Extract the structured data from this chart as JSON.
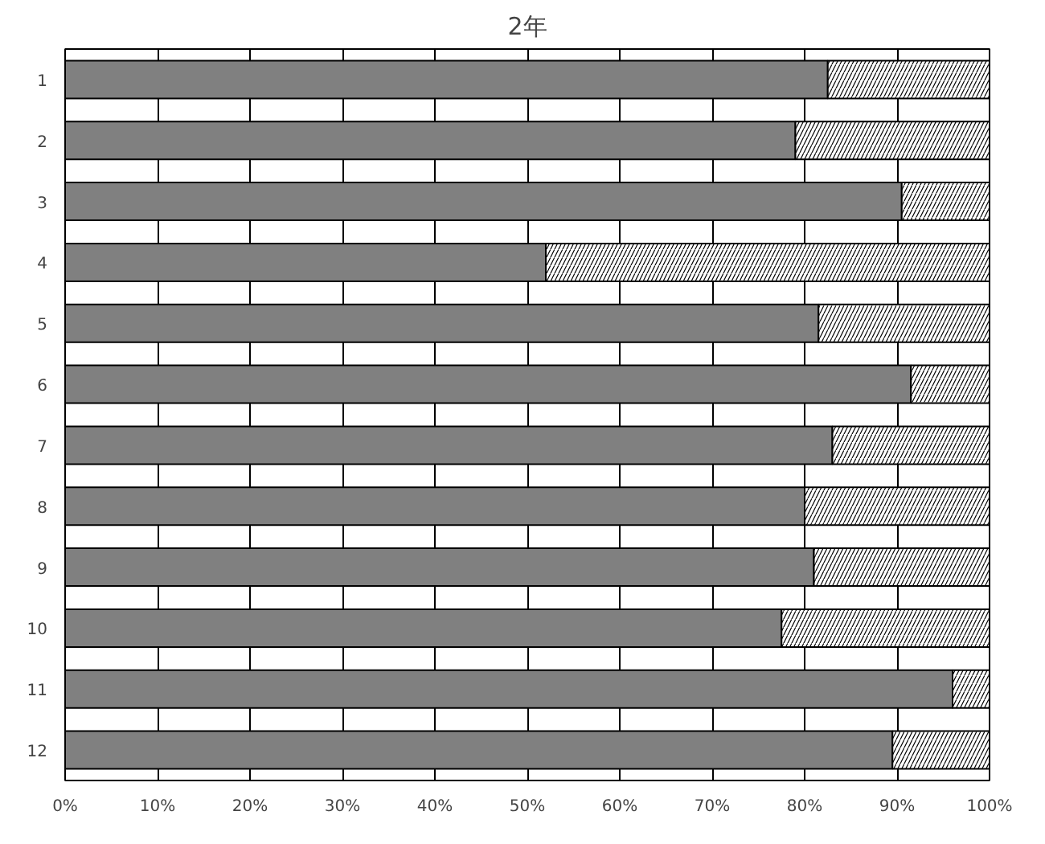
{
  "chart_data": {
    "type": "bar",
    "orientation": "horizontal",
    "stacked": true,
    "title": "2年",
    "categories": [
      "1",
      "2",
      "3",
      "4",
      "5",
      "6",
      "7",
      "8",
      "9",
      "10",
      "11",
      "12"
    ],
    "series": [
      {
        "color": "#808080",
        "values": [
          82.5,
          79,
          90.5,
          52,
          81.5,
          91.5,
          83,
          80,
          81,
          77.5,
          96,
          89.5
        ]
      },
      {
        "color": "#ffffff",
        "values": [
          17.5,
          21,
          9.5,
          48,
          18.5,
          8.5,
          17,
          20,
          19,
          22.5,
          4,
          10.5
        ]
      }
    ],
    "xlim": [
      0,
      100
    ],
    "xticks": [
      {
        "value": 0,
        "label": "0%"
      },
      {
        "value": 10,
        "label": "10%"
      },
      {
        "value": 20,
        "label": "20%"
      },
      {
        "value": 30,
        "label": "30%"
      },
      {
        "value": 40,
        "label": "40%"
      },
      {
        "value": 50,
        "label": "50%"
      },
      {
        "value": 60,
        "label": "60%"
      },
      {
        "value": 70,
        "label": "70%"
      },
      {
        "value": 80,
        "label": "80%"
      },
      {
        "value": 90,
        "label": "90%"
      },
      {
        "value": 100,
        "label": "100%"
      }
    ],
    "grid": "x"
  }
}
